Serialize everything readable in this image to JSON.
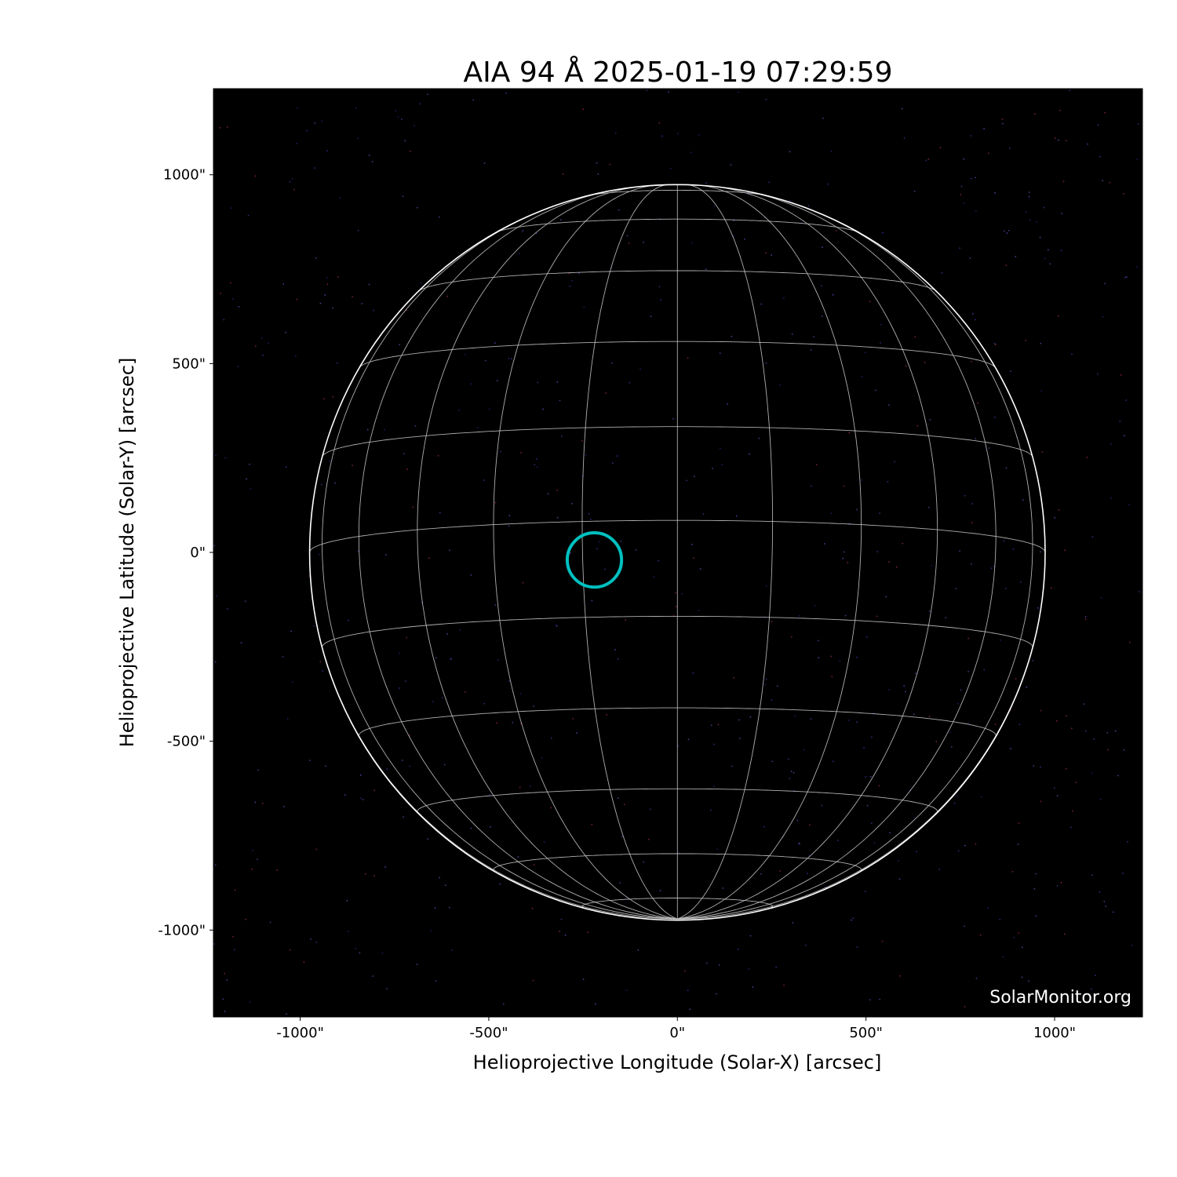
{
  "chart_data": {
    "type": "image",
    "title": "AIA 94 Å 2025-01-19 07:29:59",
    "xlabel": "Helioprojective Longitude (Solar-X) [arcsec]",
    "ylabel": "Helioprojective Latitude (Solar-Y) [arcsec]",
    "xlim": [
      -1230,
      1233
    ],
    "ylim": [
      -1230,
      1228
    ],
    "xticks": [
      -1000,
      -500,
      0,
      500,
      1000
    ],
    "yticks": [
      1000,
      500,
      0,
      -500,
      -1000
    ],
    "xtick_labels": [
      "-1000\"",
      "-500\"",
      "0\"",
      "500\"",
      "1000\""
    ],
    "ytick_labels": [
      "1000\"",
      "500\"",
      "0\"",
      "-500\"",
      "-1000\""
    ],
    "grid": false,
    "background_color": "#000000",
    "solar_disk": {
      "center": [
        0,
        0
      ],
      "radius_arcsec": 975,
      "limb_color": "#ffffff"
    },
    "heliographic_grid": {
      "spacing_deg": 15,
      "b0_deg": -5,
      "color": "#cccccc"
    },
    "region_marker": {
      "center": [
        -220,
        -20
      ],
      "radius_arcsec": 72,
      "color": "#00c0c0"
    },
    "watermark": "SolarMonitor.org"
  }
}
